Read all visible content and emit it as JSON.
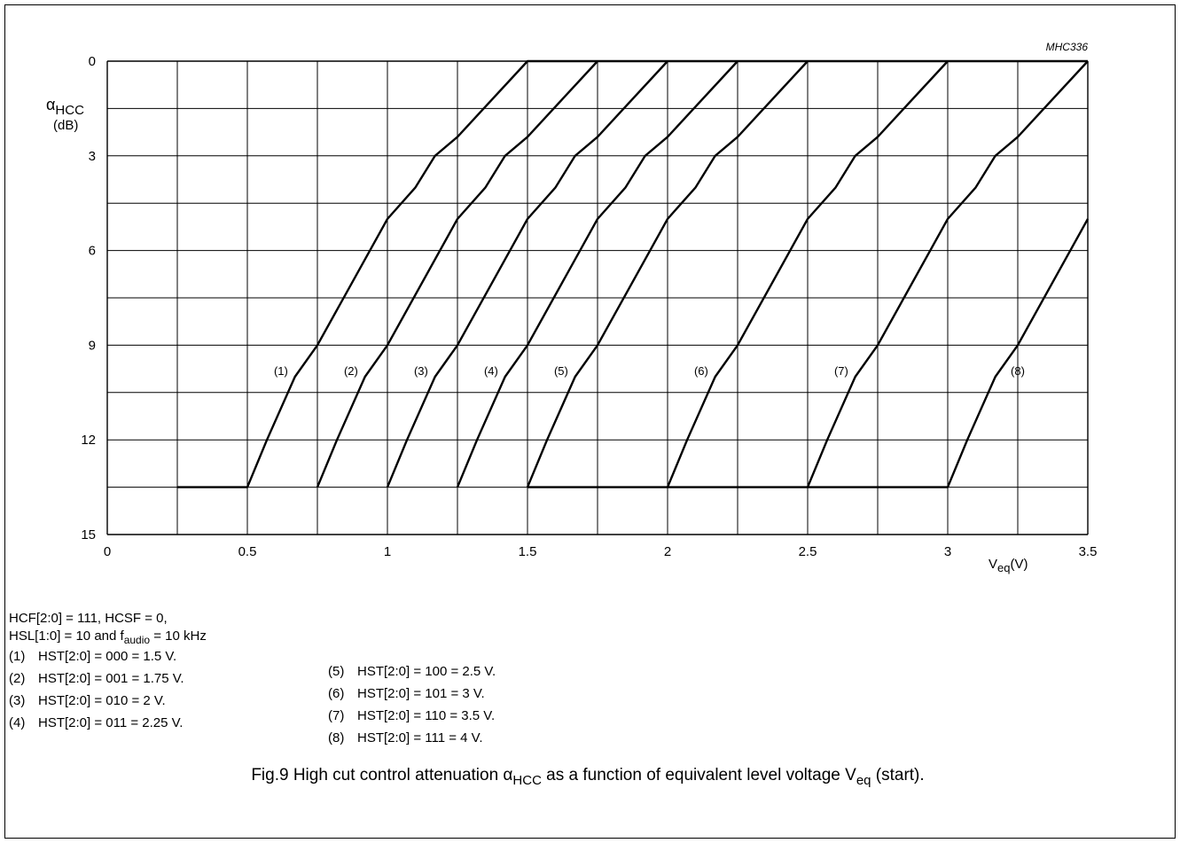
{
  "chart_data": {
    "type": "line",
    "code": "MHC336",
    "ylabel_symbol": "α",
    "ylabel_sub": "HCC",
    "ylabel_unit": "(dB)",
    "xlabel_main": "V",
    "xlabel_sub": "eq",
    "xlabel_unit": "(V)",
    "xlim": [
      0,
      3.5
    ],
    "ylim": [
      0,
      15
    ],
    "y_inverted": true,
    "grid": true,
    "xticks": [
      0,
      0.5,
      1,
      1.5,
      2,
      2.5,
      3,
      3.5
    ],
    "xtick_labels": [
      "0",
      "0.5",
      "1",
      "1.5",
      "2",
      "2.5",
      "3",
      "3.5"
    ],
    "yticks": [
      0,
      3,
      6,
      9,
      12,
      15
    ],
    "ytick_labels": [
      "0",
      "3",
      "6",
      "9",
      "12",
      "15"
    ],
    "series": [
      {
        "name": "(1)",
        "label_at": [
          0.62,
          9.8
        ],
        "points": [
          [
            0.25,
            13.5
          ],
          [
            0.5,
            13.5
          ],
          [
            0.57,
            12
          ],
          [
            0.67,
            10
          ],
          [
            0.75,
            9
          ],
          [
            1.0,
            5
          ],
          [
            1.1,
            4
          ],
          [
            1.17,
            3
          ],
          [
            1.25,
            2.4
          ],
          [
            1.5,
            0
          ],
          [
            3.5,
            0
          ]
        ]
      },
      {
        "name": "(2)",
        "label_at": [
          0.87,
          9.8
        ],
        "points": [
          [
            0.75,
            13.5
          ],
          [
            0.82,
            12
          ],
          [
            0.92,
            10
          ],
          [
            1.0,
            9
          ],
          [
            1.25,
            5
          ],
          [
            1.35,
            4
          ],
          [
            1.42,
            3
          ],
          [
            1.5,
            2.4
          ],
          [
            1.75,
            0
          ]
        ]
      },
      {
        "name": "(3)",
        "label_at": [
          1.12,
          9.8
        ],
        "points": [
          [
            1.0,
            13.5
          ],
          [
            1.07,
            12
          ],
          [
            1.17,
            10
          ],
          [
            1.25,
            9
          ],
          [
            1.5,
            5
          ],
          [
            1.6,
            4
          ],
          [
            1.67,
            3
          ],
          [
            1.75,
            2.4
          ],
          [
            2.0,
            0
          ]
        ]
      },
      {
        "name": "(4)",
        "label_at": [
          1.37,
          9.8
        ],
        "points": [
          [
            1.25,
            13.5
          ],
          [
            1.32,
            12
          ],
          [
            1.42,
            10
          ],
          [
            1.5,
            9
          ],
          [
            1.75,
            5
          ],
          [
            1.85,
            4
          ],
          [
            1.92,
            3
          ],
          [
            2.0,
            2.4
          ],
          [
            2.25,
            0
          ]
        ]
      },
      {
        "name": "(5)",
        "label_at": [
          1.62,
          9.8
        ],
        "points": [
          [
            1.5,
            13.5
          ],
          [
            1.57,
            12
          ],
          [
            1.67,
            10
          ],
          [
            1.75,
            9
          ],
          [
            2.0,
            5
          ],
          [
            2.1,
            4
          ],
          [
            2.17,
            3
          ],
          [
            2.25,
            2.4
          ],
          [
            2.5,
            0
          ]
        ]
      },
      {
        "name": "(6)",
        "label_at": [
          2.12,
          9.8
        ],
        "points": [
          [
            2.0,
            13.5
          ],
          [
            2.07,
            12
          ],
          [
            2.17,
            10
          ],
          [
            2.25,
            9
          ],
          [
            2.5,
            5
          ],
          [
            2.6,
            4
          ],
          [
            2.67,
            3
          ],
          [
            2.75,
            2.4
          ],
          [
            3.0,
            0
          ]
        ]
      },
      {
        "name": "(7)",
        "label_at": [
          2.62,
          9.8
        ],
        "points": [
          [
            2.5,
            13.5
          ],
          [
            2.57,
            12
          ],
          [
            2.67,
            10
          ],
          [
            2.75,
            9
          ],
          [
            3.0,
            5
          ],
          [
            3.1,
            4
          ],
          [
            3.17,
            3
          ],
          [
            3.25,
            2.4
          ],
          [
            3.5,
            0
          ]
        ]
      },
      {
        "name": "(8)",
        "label_at": [
          3.25,
          9.8
        ],
        "points": [
          [
            1.5,
            13.5
          ],
          [
            3.0,
            13.5
          ],
          [
            3.07,
            12
          ],
          [
            3.17,
            10
          ],
          [
            3.25,
            9
          ],
          [
            3.5,
            5
          ]
        ]
      }
    ]
  },
  "notes": {
    "cond1": "HCF[2:0] = 111, HCSF = 0,",
    "cond2_a": "HSL[1:0] = 10 and f",
    "cond2_sub": "audio",
    "cond2_b": " = 10 kHz",
    "left": [
      {
        "num": "(1)",
        "text": "HST[2:0] = 000 = 1.5 V."
      },
      {
        "num": "(2)",
        "text": "HST[2:0] = 001 = 1.75 V."
      },
      {
        "num": "(3)",
        "text": "HST[2:0] = 010 = 2 V."
      },
      {
        "num": "(4)",
        "text": "HST[2:0] = 011 = 2.25 V."
      }
    ],
    "right": [
      {
        "num": "(5)",
        "text": "HST[2:0] = 100 = 2.5 V."
      },
      {
        "num": "(6)",
        "text": "HST[2:0] = 101 = 3 V."
      },
      {
        "num": "(7)",
        "text": "HST[2:0] = 110 = 3.5 V."
      },
      {
        "num": "(8)",
        "text": "HST[2:0] = 111 = 4 V."
      }
    ]
  },
  "caption": {
    "a": "Fig.9  High cut control attenuation ",
    "alpha": "α",
    "sub1": "HCC",
    "b": " as a function of equivalent level voltage V",
    "sub2": "eq",
    "c": " (start)."
  }
}
